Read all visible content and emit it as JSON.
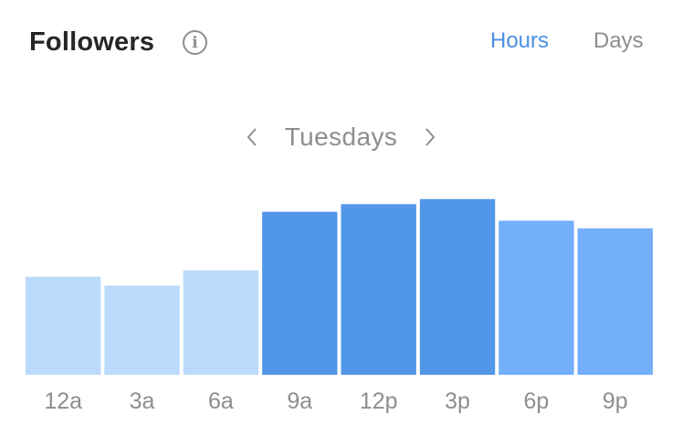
{
  "header": {
    "title": "Followers",
    "info_icon": "info-icon"
  },
  "tabs": [
    {
      "label": "Hours",
      "active": true
    },
    {
      "label": "Days",
      "active": false
    }
  ],
  "nav": {
    "prev_icon": "chevron-left-icon",
    "label": "Tuesdays",
    "next_icon": "chevron-right-icon"
  },
  "chart_data": {
    "type": "bar",
    "categories": [
      "12a",
      "3a",
      "6a",
      "9a",
      "12p",
      "3p",
      "6p",
      "9p"
    ],
    "values": [
      77,
      70,
      82,
      128,
      134,
      138,
      121,
      115
    ],
    "bar_colors": [
      "#bcdafb",
      "#bcdafb",
      "#bcdafb",
      "#5296e8",
      "#5296e8",
      "#5296e8",
      "#73affa",
      "#73affa"
    ],
    "ylim": [
      0,
      140
    ],
    "grid": false,
    "legend": "none"
  }
}
